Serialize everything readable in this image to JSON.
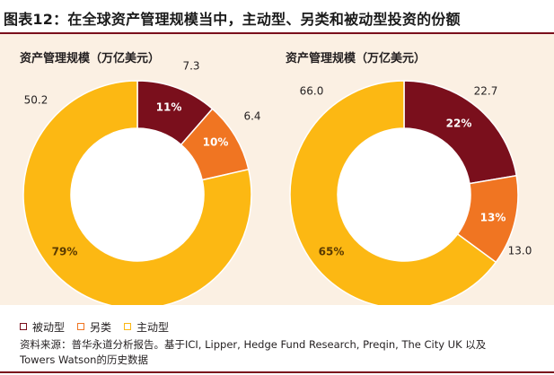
{
  "figure": {
    "title": "图表12：在全球资产管理规模当中，主动型、另类和被动型投资的份额",
    "source_line1": "资料来源：普华永道分析报告。基于ICI, Lipper, Hedge Fund Research, Preqin, The City UK 以及",
    "source_line2": "Towers Watson的历史数据"
  },
  "colors": {
    "passive": "#7a0f1c",
    "alternative": "#f07522",
    "active": "#fcb813",
    "panel_bg": "#fbf0e3",
    "rule": "#7a0f1c"
  },
  "legend": [
    {
      "label": "被动型",
      "key": "passive"
    },
    {
      "label": "另类",
      "key": "alternative"
    },
    {
      "label": "主动型",
      "key": "active"
    }
  ],
  "chart_data": [
    {
      "type": "pie",
      "title": "资产管理规模（万亿美元）",
      "categories": [
        "被动型",
        "另类",
        "主动型"
      ],
      "values": [
        7.3,
        6.4,
        50.2
      ],
      "value_labels": [
        "7.3",
        "6.4",
        "50.2"
      ],
      "percent_labels": [
        "11%",
        "10%",
        "79%"
      ]
    },
    {
      "type": "pie",
      "title": "资产管理规模（万亿美元）",
      "categories": [
        "被动型",
        "另类",
        "主动型"
      ],
      "values": [
        22.7,
        13.0,
        66.0
      ],
      "value_labels": [
        "22.7",
        "13.0",
        "66.0"
      ],
      "percent_labels": [
        "22%",
        "13%",
        "65%"
      ]
    }
  ]
}
